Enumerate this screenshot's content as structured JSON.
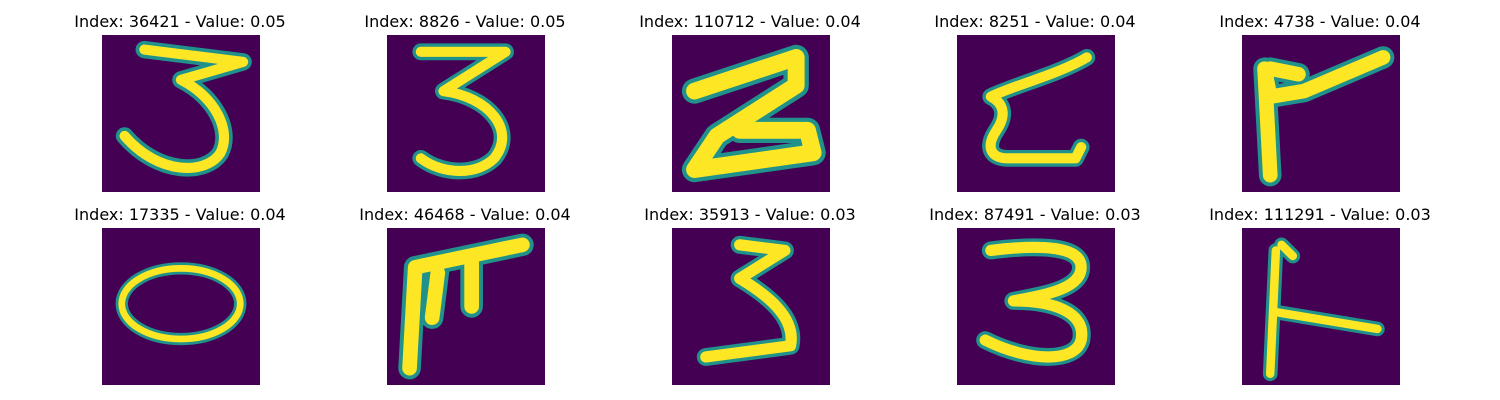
{
  "colors": {
    "background": "#440154",
    "edge": "#21918c",
    "stroke": "#fde725"
  },
  "panels": [
    {
      "index": "36421",
      "value": "0.05",
      "title": "Index: 36421 - Value: 0.05",
      "glyph": "3"
    },
    {
      "index": "8826",
      "value": "0.05",
      "title": "Index: 8826 - Value: 0.05",
      "glyph": "3"
    },
    {
      "index": "110712",
      "value": "0.04",
      "title": "Index: 110712 - Value: 0.04",
      "glyph": "z"
    },
    {
      "index": "8251",
      "value": "0.04",
      "title": "Index: 8251 - Value: 0.04",
      "glyph": "z-curvy"
    },
    {
      "index": "4738",
      "value": "0.04",
      "title": "Index: 4738 - Value: 0.04",
      "glyph": "7-slanted"
    },
    {
      "index": "17335",
      "value": "0.04",
      "title": "Index: 17335 - Value: 0.04",
      "glyph": "0"
    },
    {
      "index": "46468",
      "value": "0.04",
      "title": "Index: 46468 - Value: 0.04",
      "glyph": "f-like"
    },
    {
      "index": "35913",
      "value": "0.03",
      "title": "Index: 35913 - Value: 0.03",
      "glyph": "3"
    },
    {
      "index": "87491",
      "value": "0.03",
      "title": "Index: 87491 - Value: 0.03",
      "glyph": "3"
    },
    {
      "index": "111291",
      "value": "0.03",
      "title": "Index: 111291 - Value: 0.03",
      "glyph": "l-bar"
    }
  ]
}
